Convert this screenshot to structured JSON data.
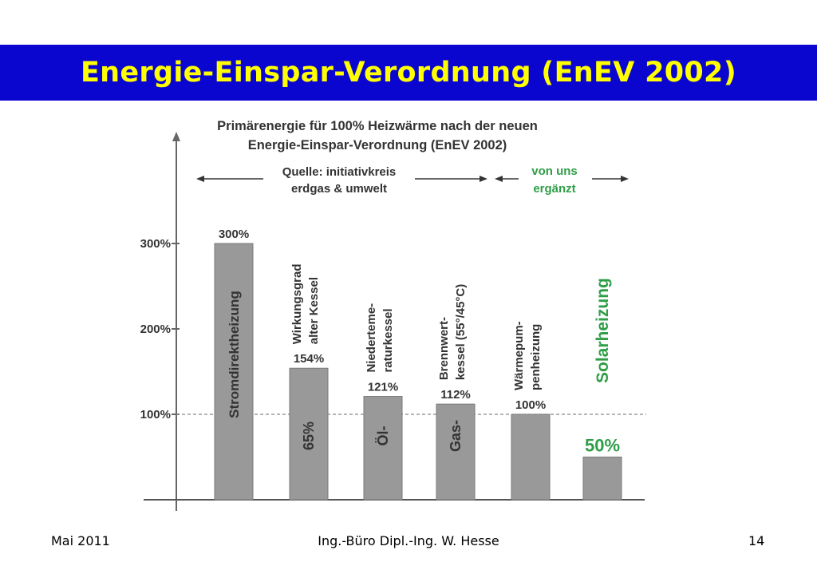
{
  "slide": {
    "title": "Energie-Einspar-Verordnung (EnEV 2002)",
    "footer_left": "Mai 2011",
    "footer_center": "Ing.-Büro Dipl.-Ing. W. Hesse",
    "footer_right": "14"
  },
  "colors": {
    "title_bar": "#0b06cf",
    "title_text": "#ffff00",
    "bar_fill": "#999999",
    "green_text": "#2e9e47"
  },
  "chart_data": {
    "type": "bar",
    "title": [
      "Primärenergie für 100% Heizwärme nach der neuen",
      "Energie-Einspar-Verordnung (EnEV 2002)"
    ],
    "source_note": [
      "Quelle: initiativkreis",
      "erdgas & umwelt"
    ],
    "added_note": [
      "von uns",
      "ergänzt"
    ],
    "yticks": [
      {
        "value": 100,
        "label": "100%"
      },
      {
        "value": 200,
        "label": "200%"
      },
      {
        "value": 300,
        "label": "300%"
      }
    ],
    "ylim": [
      0,
      360
    ],
    "reference_line": 100,
    "categories": [
      {
        "inner": "Stromdirektheizung",
        "above": [],
        "above_color": "dark"
      },
      {
        "inner": "65%",
        "above": [
          "Wirkungsgrad",
          "alter Kessel"
        ],
        "above_color": "dark"
      },
      {
        "inner": "Öl-",
        "above": [
          "Niederteme-",
          "raturkessel"
        ],
        "above_color": "dark"
      },
      {
        "inner": "Gas-",
        "above": [
          "Brennwert-",
          "kessel (55°/45°C)"
        ],
        "above_color": "dark"
      },
      {
        "inner": "",
        "above": [
          "Wärmepum-",
          "penheizung"
        ],
        "above_color": "dark"
      },
      {
        "inner": "",
        "above": [
          "Solarheizung"
        ],
        "above_color": "green"
      }
    ],
    "values": [
      300,
      154,
      121,
      112,
      100,
      50
    ],
    "value_labels": [
      "300%",
      "154%",
      "121%",
      "112%",
      "100%",
      "50%"
    ]
  }
}
